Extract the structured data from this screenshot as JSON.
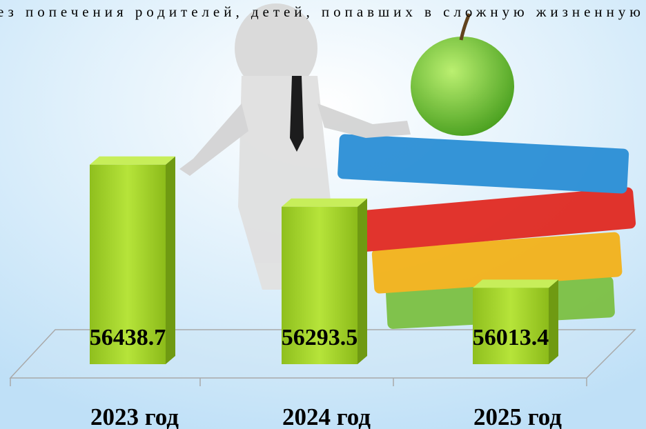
{
  "header_text": "ез попечения родителей, детей, попавших в сложную жизненную",
  "chart_data": {
    "type": "bar3d",
    "categories": [
      "2023 год",
      "2024 год",
      "2025 год"
    ],
    "values": [
      56438.7,
      56293.5,
      56013.4
    ],
    "color": "#9acd32",
    "ylim": [
      55750,
      56500
    ]
  }
}
